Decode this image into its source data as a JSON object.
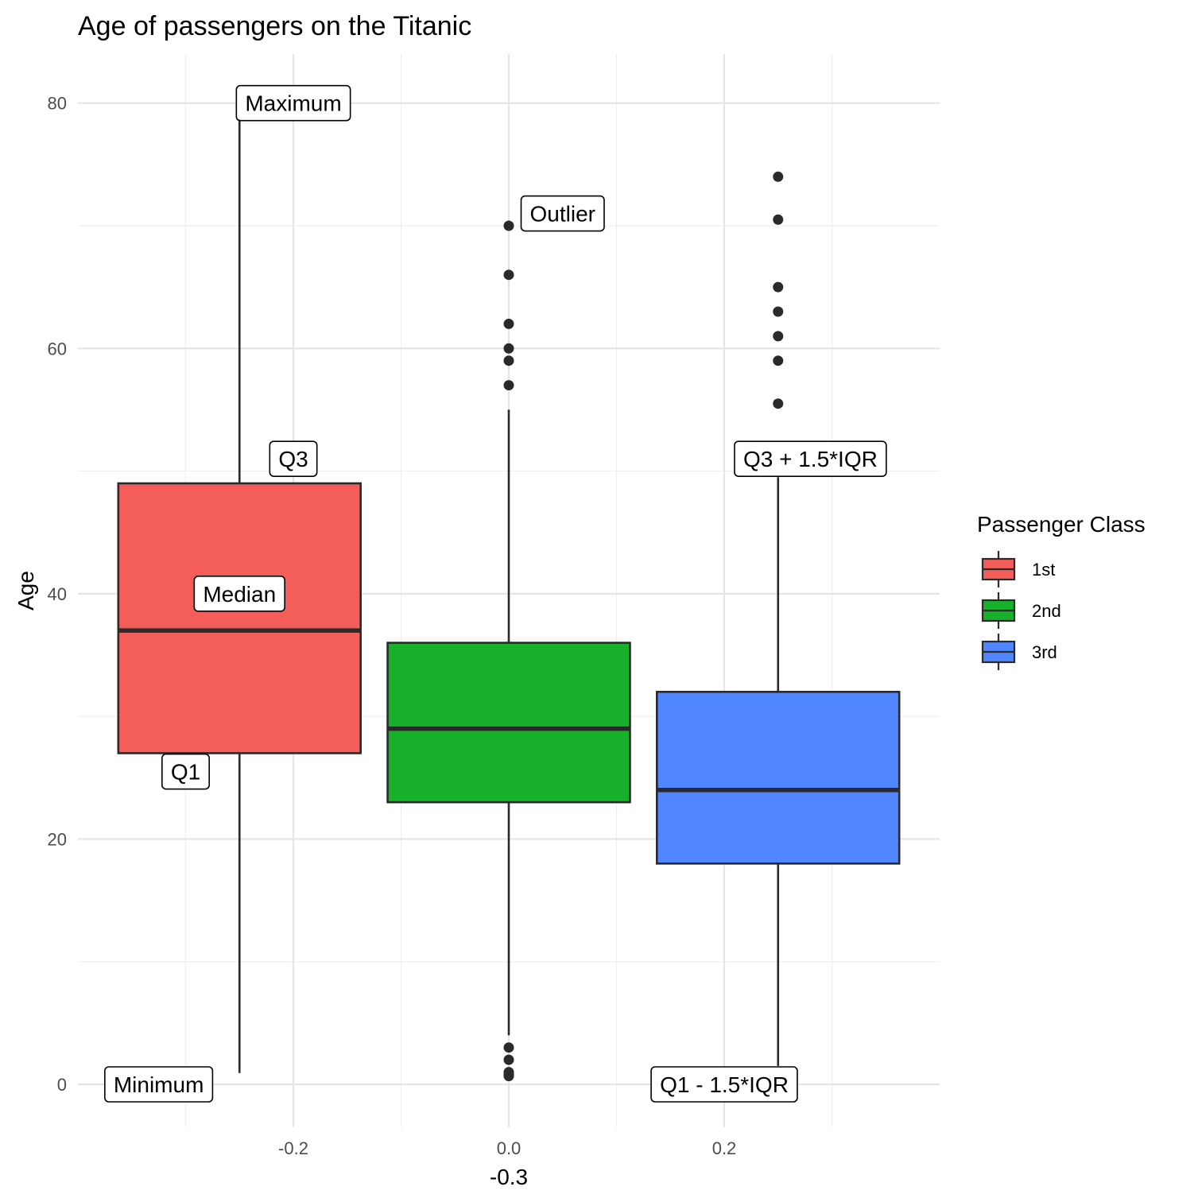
{
  "chart_data": {
    "type": "box",
    "title": "Age of passengers on the Titanic",
    "xlabel": "-0.3",
    "ylabel": "Age",
    "xlim": [
      -0.4,
      0.4
    ],
    "ylim": [
      -3.5,
      84
    ],
    "x_ticks": [
      {
        "value": -0.2,
        "label": "-0.2"
      },
      {
        "value": 0.0,
        "label": "0.0"
      },
      {
        "value": 0.2,
        "label": "0.2"
      }
    ],
    "y_ticks": [
      {
        "value": 0,
        "label": "0"
      },
      {
        "value": 20,
        "label": "20"
      },
      {
        "value": 40,
        "label": "40"
      },
      {
        "value": 60,
        "label": "60"
      },
      {
        "value": 80,
        "label": "80"
      }
    ],
    "grid": true,
    "legend": {
      "title": "Passenger Class",
      "placement": "right"
    },
    "series": [
      {
        "name": "1st",
        "color": "#F35E5A",
        "x": -0.25,
        "whisker_low": 0.92,
        "q1": 27,
        "median": 37,
        "q3": 49,
        "whisker_high": 80,
        "outliers": []
      },
      {
        "name": "2nd",
        "color": "#17B12B",
        "x": 0.0,
        "whisker_low": 4,
        "q1": 23,
        "median": 29,
        "q3": 36,
        "whisker_high": 55,
        "outliers": [
          70,
          66,
          62,
          60,
          59,
          57,
          3,
          2,
          1,
          0.83,
          0.67
        ]
      },
      {
        "name": "3rd",
        "color": "#5086FF",
        "x": 0.25,
        "whisker_low": 1.5,
        "q1": 18,
        "median": 24,
        "q3": 32,
        "whisker_high": 49.5,
        "outliers": [
          74,
          70.5,
          65,
          63,
          61,
          59,
          55.5
        ]
      }
    ],
    "annotations": [
      {
        "label": "Maximum",
        "x": -0.2,
        "y": 80
      },
      {
        "label": "Q3",
        "x": -0.2,
        "y": 51
      },
      {
        "label": "Median",
        "x": -0.25,
        "y": 40
      },
      {
        "label": "Q1",
        "x": -0.3,
        "y": 25.5
      },
      {
        "label": "Minimum",
        "x": -0.325,
        "y": 0
      },
      {
        "label": "Outlier",
        "x": 0.05,
        "y": 71
      },
      {
        "label": "Q3 + 1.5*IQR",
        "x": 0.28,
        "y": 51
      },
      {
        "label": "Q1 - 1.5*IQR",
        "x": 0.2,
        "y": 0
      }
    ]
  }
}
